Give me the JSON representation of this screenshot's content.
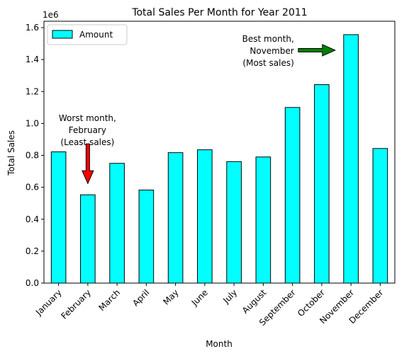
{
  "chart_data": {
    "type": "bar",
    "title": "Total Sales Per Month for Year 2011",
    "xlabel": "Month",
    "ylabel": "Total Sales",
    "offset_label": "1e6",
    "ylim": [
      0,
      1.64
    ],
    "scale": 1000000,
    "yticks": [
      0.0,
      0.2,
      0.4,
      0.6,
      0.8,
      1.0,
      1.2,
      1.4,
      1.6
    ],
    "ytick_labels": [
      "0.0",
      "0.2",
      "0.4",
      "0.6",
      "0.8",
      "1.0",
      "1.2",
      "1.4",
      "1.6"
    ],
    "categories": [
      "January",
      "February",
      "March",
      "April",
      "May",
      "June",
      "July",
      "August",
      "September",
      "October",
      "November",
      "December"
    ],
    "series": [
      {
        "name": "Amount",
        "color": "#00ffff",
        "edge_color": "#000000",
        "values": [
          822000,
          553000,
          750000,
          583000,
          817000,
          835000,
          761000,
          790000,
          1100000,
          1243000,
          1556000,
          843000
        ]
      }
    ],
    "legend": {
      "position": "top-left",
      "entries": [
        "Amount"
      ]
    },
    "grid": false,
    "annotations": [
      {
        "lines": [
          "Worst month,",
          "February",
          "(Least sales)"
        ],
        "target_category": "February",
        "arrow_direction": "down",
        "arrow_color": "#ff0000"
      },
      {
        "lines": [
          "Best month,",
          "November",
          "(Most sales)"
        ],
        "target_category": "November",
        "arrow_direction": "right",
        "arrow_color": "#008000"
      }
    ]
  }
}
